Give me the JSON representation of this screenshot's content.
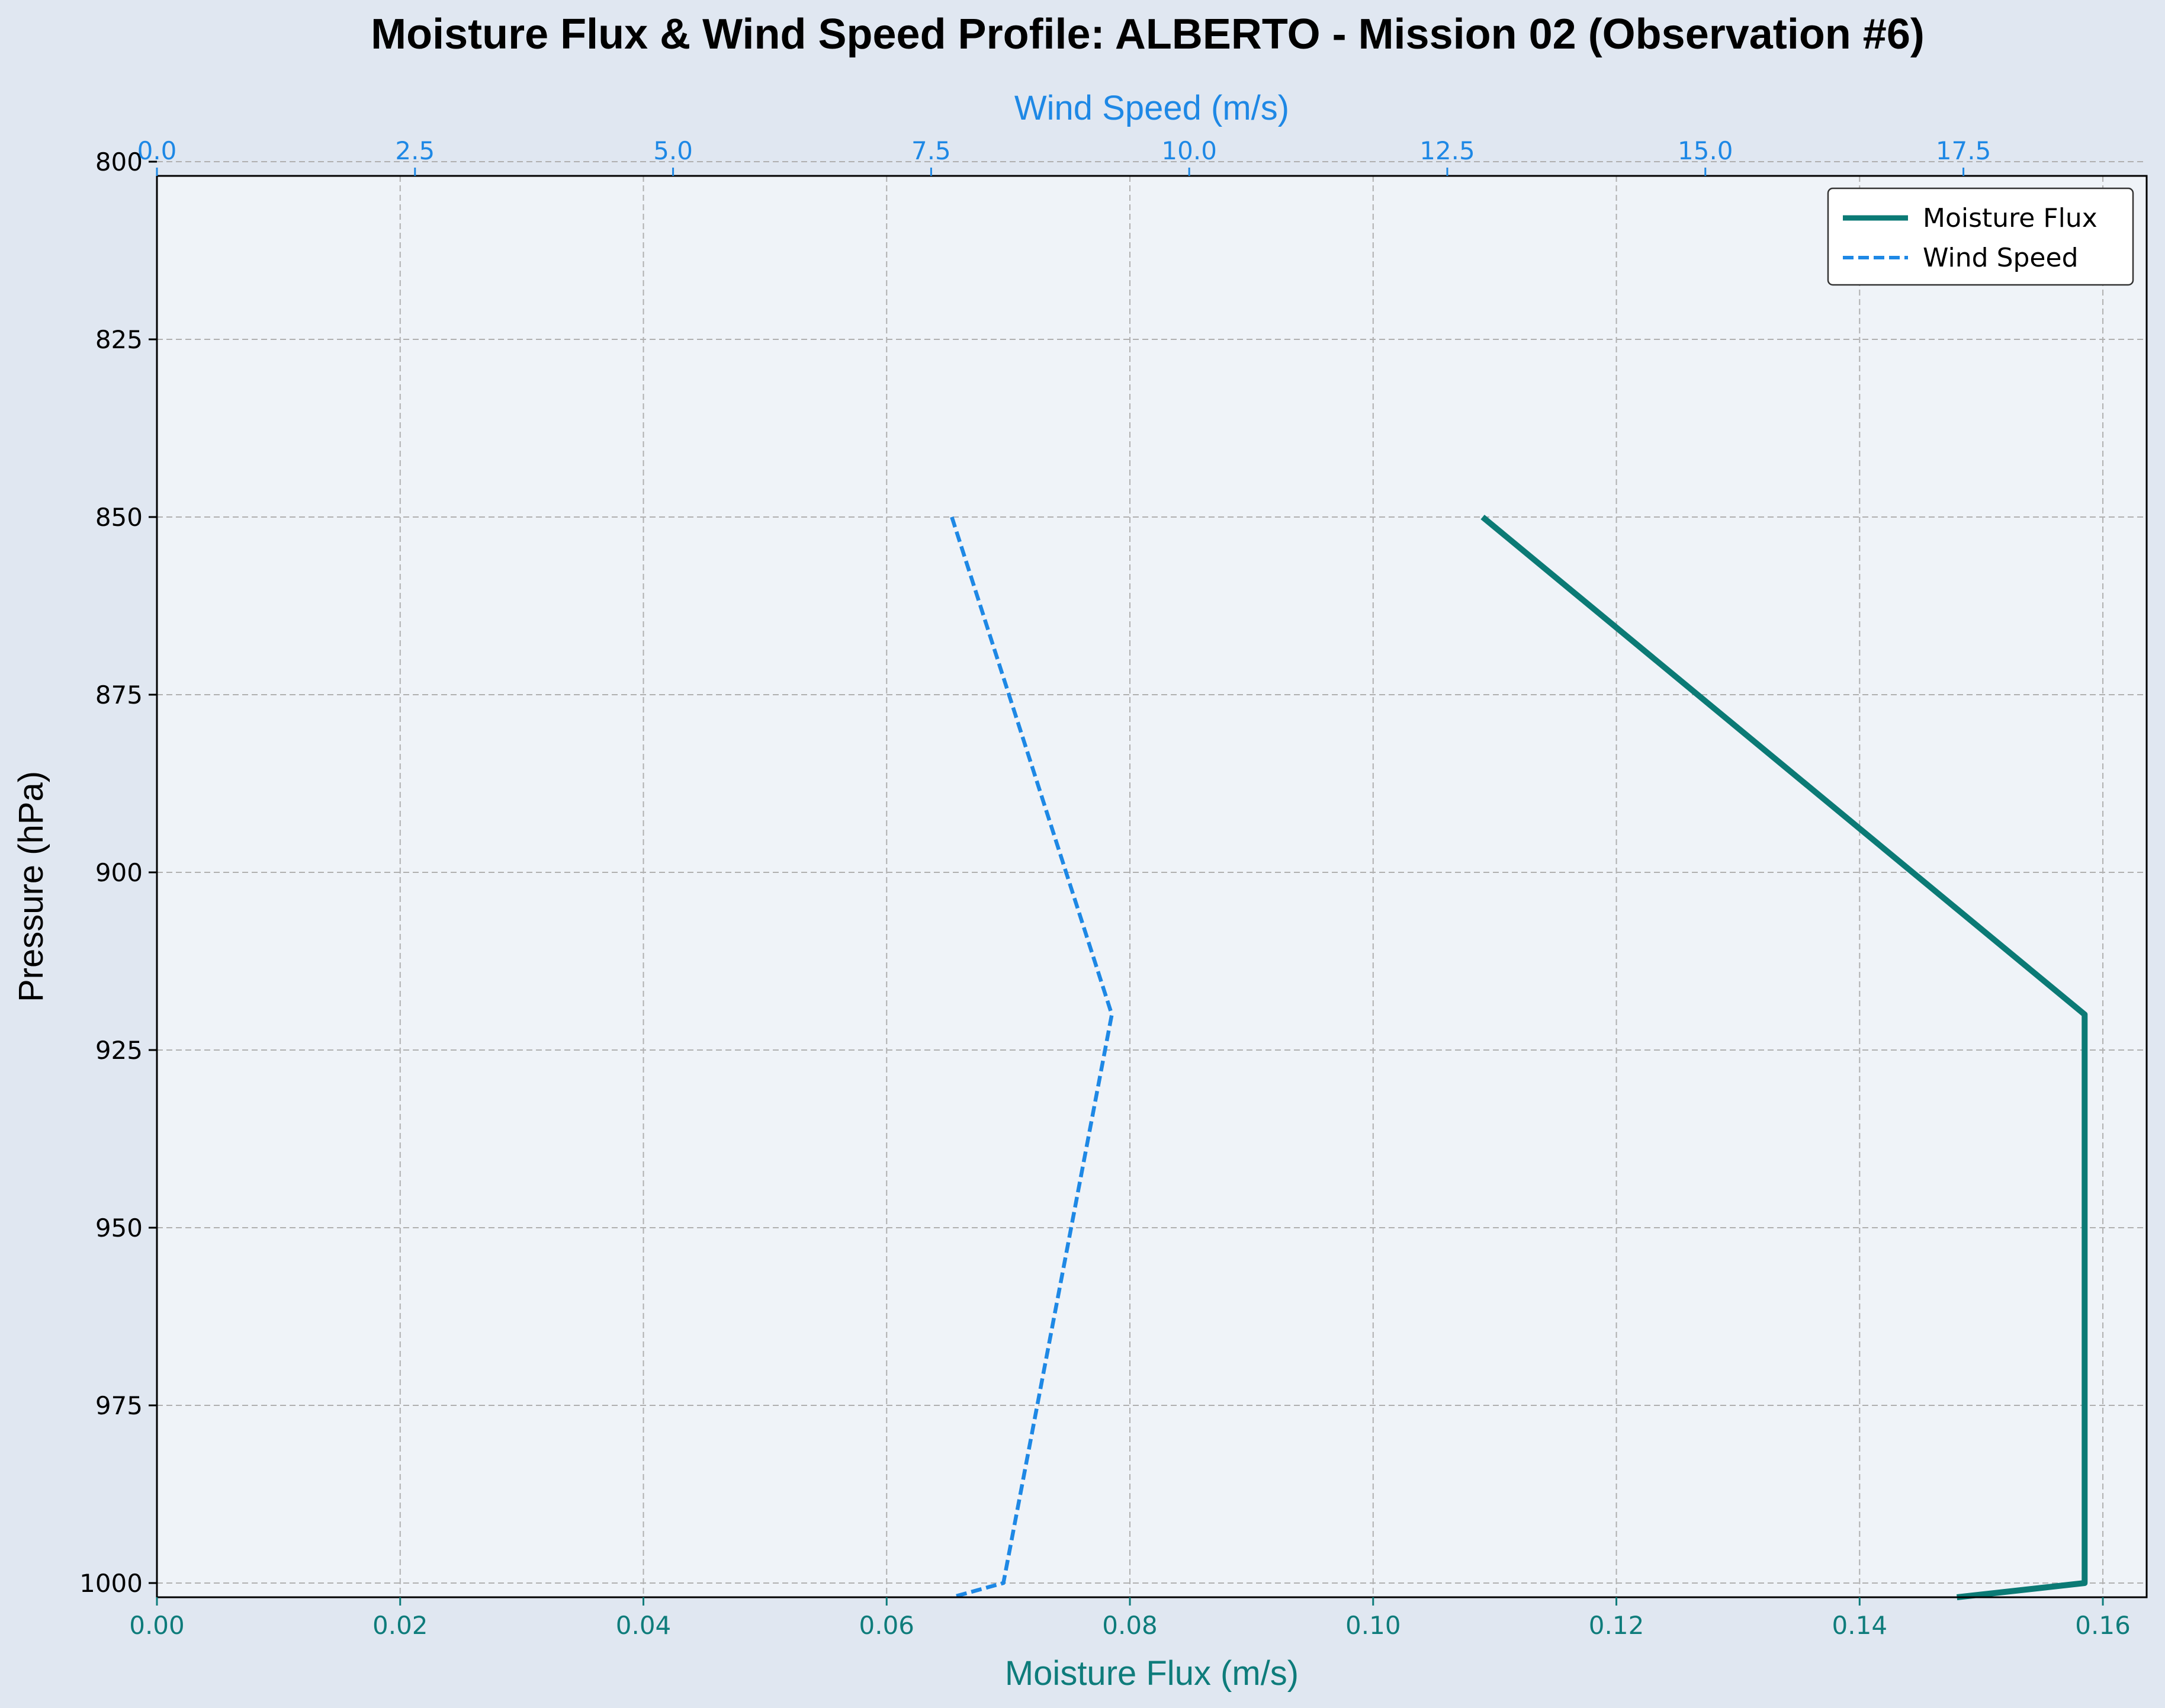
{
  "chart_data": {
    "type": "line",
    "title": "Moisture Flux & Wind Speed Profile: ALBERTO - Mission 02 (Observation #6)",
    "ylabel": "Pressure (hPa)",
    "ylim": [
      802,
      1002
    ],
    "y_inverted": true,
    "yticks": [
      "800",
      "825",
      "850",
      "875",
      "900",
      "925",
      "950",
      "975",
      "1000"
    ],
    "bottom_axis": {
      "label": "Moisture Flux (m/s)",
      "lim": [
        0,
        0.1636
      ],
      "ticks": [
        "0.00",
        "0.02",
        "0.04",
        "0.06",
        "0.08",
        "0.10",
        "0.12",
        "0.14",
        "0.16"
      ],
      "color": "#0e7c7b"
    },
    "top_axis": {
      "label": "Wind Speed (m/s)",
      "lim": [
        0,
        19.275
      ],
      "ticks": [
        "0.0",
        "2.5",
        "5.0",
        "7.5",
        "10.0",
        "12.5",
        "15.0",
        "17.5"
      ],
      "color": "#1e88e5"
    },
    "series": [
      {
        "name": "Moisture Flux",
        "axis": "bottom",
        "color": "#0b7a75",
        "style": "solid",
        "points": [
          [
            0.109,
            850
          ],
          [
            0.1585,
            920
          ],
          [
            0.1585,
            1000
          ],
          [
            0.148,
            1002
          ]
        ]
      },
      {
        "name": "Wind Speed",
        "axis": "top",
        "color": "#1e88e5",
        "style": "dashed",
        "points": [
          [
            7.7,
            850
          ],
          [
            9.25,
            920
          ],
          [
            8.2,
            1000
          ],
          [
            7.7,
            1002
          ]
        ]
      }
    ],
    "grid": true,
    "legend": {
      "position": "top-right"
    }
  },
  "colors": {
    "page_background": "#e0e7f1",
    "plot_background": "#eff3f8",
    "grid": "#b0b0b0"
  }
}
